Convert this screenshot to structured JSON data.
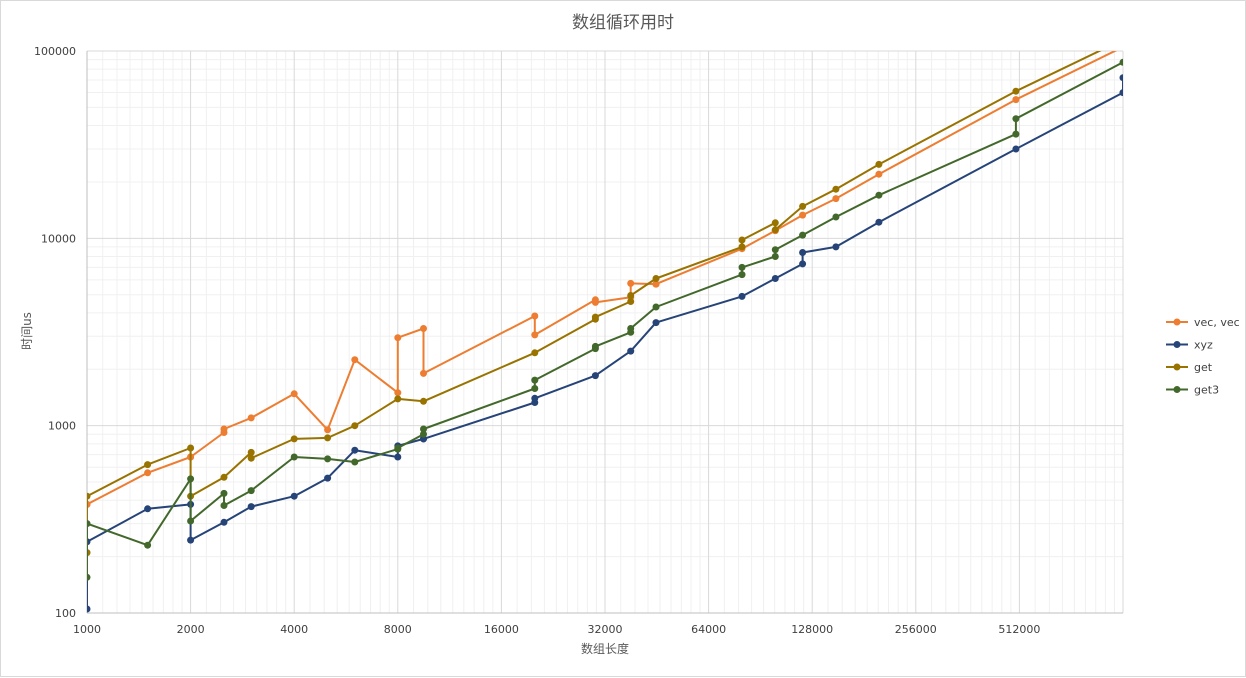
{
  "chart_data": {
    "type": "line",
    "title": "数组循环用时",
    "xlabel": "数组长度",
    "ylabel": "时间us",
    "x_scale": "log2",
    "y_scale": "log10",
    "xlim": [
      1000,
      1024000
    ],
    "ylim": [
      100,
      100000
    ],
    "x_ticks": [
      1000,
      2000,
      4000,
      8000,
      16000,
      32000,
      64000,
      128000,
      256000,
      512000
    ],
    "x_tick_labels": [
      "1000",
      "2000",
      "4000",
      "8000",
      "16000",
      "32000",
      "64000",
      "128000",
      "256000",
      "512000"
    ],
    "y_ticks": [
      100,
      1000,
      10000,
      100000
    ],
    "y_tick_labels": [
      "100",
      "1000",
      "10000",
      "100000"
    ],
    "grid": true,
    "legend_position": "right",
    "series": [
      {
        "name": "vec, vec",
        "color": "#ED7D31",
        "x": [
          1000,
          1000,
          1500,
          2000,
          2000,
          2500,
          2500,
          3000,
          4000,
          5000,
          6000,
          8000,
          8000,
          9500,
          9500,
          20000,
          20000,
          30000,
          30000,
          38000,
          38000,
          45000,
          45000,
          80000,
          100000,
          100000,
          120000,
          150000,
          200000,
          500000,
          1024000
        ],
        "y": [
          380,
          380,
          560,
          680,
          680,
          920,
          960,
          1100,
          1480,
          950,
          2250,
          1500,
          2950,
          3300,
          1900,
          3850,
          3050,
          4700,
          4550,
          4850,
          5750,
          5700,
          5700,
          8800,
          11000,
          11000,
          13300,
          16300,
          22000,
          55000,
          105000
        ]
      },
      {
        "name": "xyz",
        "color": "#264478",
        "x": [
          1000,
          1000,
          1500,
          2000,
          2000,
          2500,
          3000,
          4000,
          5000,
          6000,
          8000,
          8000,
          9500,
          9500,
          20000,
          20000,
          30000,
          38000,
          45000,
          80000,
          100000,
          120000,
          120000,
          150000,
          200000,
          500000,
          1024000,
          1024000
        ],
        "y": [
          105,
          240,
          360,
          380,
          245,
          305,
          370,
          420,
          525,
          740,
          680,
          780,
          850,
          850,
          1330,
          1400,
          1850,
          2500,
          3550,
          4900,
          6100,
          7300,
          8400,
          9000,
          12200,
          30000,
          60000,
          72000
        ]
      },
      {
        "name": "get",
        "color": "#997300",
        "x": [
          1000,
          1000,
          1500,
          2000,
          2000,
          2500,
          3000,
          3000,
          4000,
          5000,
          6000,
          8000,
          9500,
          20000,
          30000,
          30000,
          38000,
          38000,
          45000,
          80000,
          80000,
          100000,
          100000,
          120000,
          150000,
          200000,
          500000,
          1024000
        ],
        "y": [
          210,
          420,
          620,
          760,
          420,
          530,
          720,
          670,
          850,
          860,
          1000,
          1390,
          1350,
          2450,
          3700,
          3800,
          4600,
          4950,
          6100,
          9000,
          9800,
          12100,
          11100,
          14800,
          18300,
          24800,
          61000,
          115000
        ]
      },
      {
        "name": "get3",
        "color": "#43682B",
        "x": [
          1000,
          1000,
          1500,
          2000,
          2000,
          2500,
          2500,
          3000,
          4000,
          5000,
          6000,
          8000,
          8000,
          9500,
          9500,
          20000,
          20000,
          30000,
          30000,
          38000,
          38000,
          45000,
          80000,
          80000,
          100000,
          100000,
          120000,
          150000,
          200000,
          500000,
          500000,
          1024000
        ],
        "y": [
          155,
          300,
          230,
          520,
          310,
          435,
          375,
          450,
          680,
          665,
          640,
          750,
          760,
          900,
          960,
          1580,
          1750,
          2580,
          2650,
          3150,
          3300,
          4300,
          6400,
          7000,
          8000,
          8700,
          10400,
          13000,
          17000,
          36000,
          43500,
          87000
        ]
      }
    ]
  }
}
